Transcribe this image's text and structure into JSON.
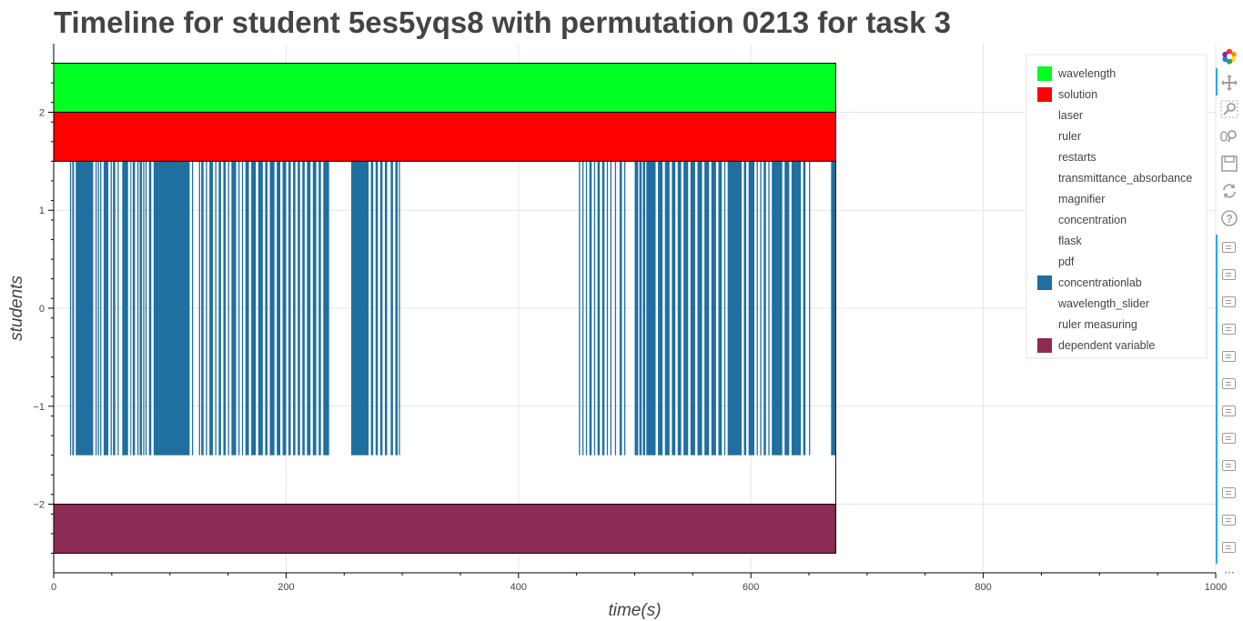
{
  "chart_data": {
    "type": "timeline",
    "title": "Timeline for student 5es5yqs8 with permutation 0213 for task 3",
    "xlabel": "time(s)",
    "ylabel": "students",
    "xlim": [
      0,
      1000
    ],
    "ylim": [
      -2.7,
      2.7
    ],
    "x_ticks": [
      0,
      200,
      400,
      600,
      800,
      1000
    ],
    "x_tick_labels": [
      "0",
      "200",
      "400",
      "600",
      "800",
      "1000"
    ],
    "y_ticks": [
      2,
      1,
      0,
      -1,
      -2
    ],
    "y_tick_labels": [
      "2",
      "1",
      "0",
      "−1",
      "−2"
    ],
    "grid": true,
    "legend_position": "top-right",
    "legend": [
      {
        "label": "wavelength",
        "color": "#00ff22"
      },
      {
        "label": "solution",
        "color": "#ff0000"
      },
      {
        "label": "laser",
        "color": ""
      },
      {
        "label": "ruler",
        "color": ""
      },
      {
        "label": "restarts",
        "color": ""
      },
      {
        "label": "transmittance_absorbance",
        "color": ""
      },
      {
        "label": "magnifier",
        "color": ""
      },
      {
        "label": "concentration",
        "color": ""
      },
      {
        "label": "flask",
        "color": ""
      },
      {
        "label": "pdf",
        "color": ""
      },
      {
        "label": "concentrationlab",
        "color": "#1f6fa0"
      },
      {
        "label": "wavelength_slider",
        "color": ""
      },
      {
        "label": "ruler measuring",
        "color": ""
      },
      {
        "label": "dependent variable",
        "color": "#8e2b55"
      }
    ],
    "bands": [
      {
        "series": "wavelength",
        "x0": 0,
        "x1": 673,
        "y0": 2.0,
        "y1": 2.5,
        "color": "#00ff22"
      },
      {
        "series": "solution",
        "x0": 0,
        "x1": 673,
        "y0": 1.5,
        "y1": 2.0,
        "color": "#ff0000"
      },
      {
        "series": "dependent variable",
        "x0": 0,
        "x1": 673,
        "y0": -2.5,
        "y1": -2.0,
        "color": "#8e2b55"
      }
    ],
    "concentrationlab": {
      "color": "#1f6fa0",
      "y0": -1.5,
      "y1": 1.5,
      "intervals": [
        [
          14,
          15
        ],
        [
          16,
          17.5
        ],
        [
          19,
          34
        ],
        [
          36,
          37
        ],
        [
          38,
          39
        ],
        [
          40,
          41
        ],
        [
          43,
          47
        ],
        [
          49,
          50
        ],
        [
          51,
          53
        ],
        [
          55,
          56
        ],
        [
          59,
          64
        ],
        [
          66,
          66.8
        ],
        [
          68,
          70
        ],
        [
          72,
          73
        ],
        [
          74,
          76
        ],
        [
          77,
          78
        ],
        [
          79,
          80
        ],
        [
          82,
          84
        ],
        [
          86,
          117
        ],
        [
          119,
          120
        ],
        [
          125,
          126
        ],
        [
          127,
          129
        ],
        [
          131,
          132
        ],
        [
          134,
          137
        ],
        [
          139,
          140
        ],
        [
          142,
          144
        ],
        [
          146,
          148
        ],
        [
          150,
          151
        ],
        [
          153,
          157
        ],
        [
          159,
          160
        ],
        [
          162,
          163
        ],
        [
          165,
          168
        ],
        [
          170,
          174
        ],
        [
          176,
          180
        ],
        [
          182,
          184
        ],
        [
          186,
          190
        ],
        [
          192,
          195
        ],
        [
          197,
          200
        ],
        [
          202,
          204
        ],
        [
          206,
          208
        ],
        [
          210,
          212
        ],
        [
          214,
          216
        ],
        [
          218,
          221
        ],
        [
          223,
          226
        ],
        [
          228,
          230
        ],
        [
          232,
          237
        ],
        [
          256,
          271
        ],
        [
          273,
          275
        ],
        [
          277,
          279
        ],
        [
          281,
          283
        ],
        [
          285,
          287
        ],
        [
          290,
          292
        ],
        [
          294,
          296
        ],
        [
          297,
          298
        ],
        [
          452,
          453
        ],
        [
          455,
          456
        ],
        [
          458,
          459
        ],
        [
          461,
          463
        ],
        [
          465,
          466
        ],
        [
          468,
          470
        ],
        [
          472,
          474
        ],
        [
          476,
          477
        ],
        [
          479,
          480
        ],
        [
          483,
          484
        ],
        [
          487,
          489
        ],
        [
          491,
          492
        ],
        [
          500,
          503
        ],
        [
          504,
          506
        ],
        [
          507,
          509
        ],
        [
          510,
          518
        ],
        [
          520,
          524
        ],
        [
          526,
          530
        ],
        [
          532,
          535
        ],
        [
          537,
          540
        ],
        [
          542,
          546
        ],
        [
          548,
          552
        ],
        [
          554,
          558
        ],
        [
          560,
          564
        ],
        [
          566,
          570
        ],
        [
          572,
          575
        ],
        [
          577,
          578
        ],
        [
          580,
          592
        ],
        [
          594,
          596
        ],
        [
          598,
          603
        ],
        [
          605,
          606
        ],
        [
          608,
          609
        ],
        [
          611,
          613
        ],
        [
          615,
          616
        ],
        [
          618,
          627
        ],
        [
          629,
          633
        ],
        [
          635,
          643
        ],
        [
          645,
          647
        ],
        [
          650,
          651
        ],
        [
          669,
          673
        ]
      ]
    }
  },
  "toolbar": {
    "tools": [
      {
        "icon": "bokeh-logo-icon"
      },
      {
        "icon": "pan-icon"
      },
      {
        "icon": "box-zoom-icon"
      },
      {
        "icon": "wheel-zoom-icon"
      },
      {
        "icon": "save-icon"
      },
      {
        "icon": "reset-icon"
      },
      {
        "icon": "help-icon"
      },
      {
        "icon": "hover-icon"
      },
      {
        "icon": "more-icon"
      }
    ],
    "more_label": "···"
  }
}
